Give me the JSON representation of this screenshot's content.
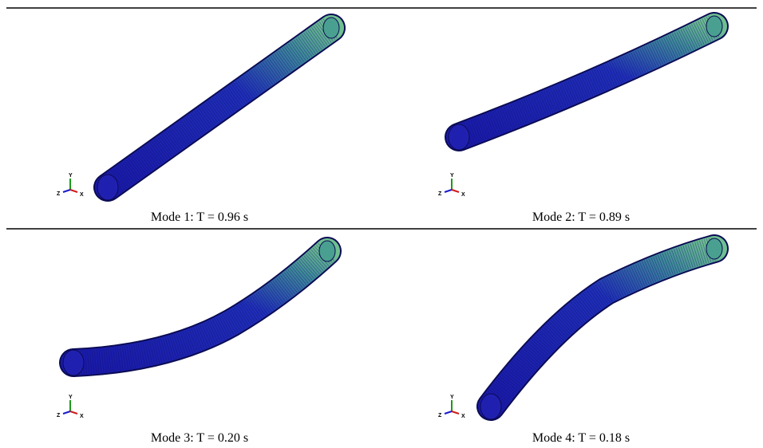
{
  "panels": [
    {
      "caption": "Mode 1: T = 0.96 s"
    },
    {
      "caption": "Mode 2: T = 0.89 s"
    },
    {
      "caption": "Mode 3: T = 0.20 s"
    },
    {
      "caption": "Mode 4: T = 0.18 s"
    }
  ],
  "triad": {
    "y": "Y",
    "z": "Z",
    "x": "X"
  }
}
